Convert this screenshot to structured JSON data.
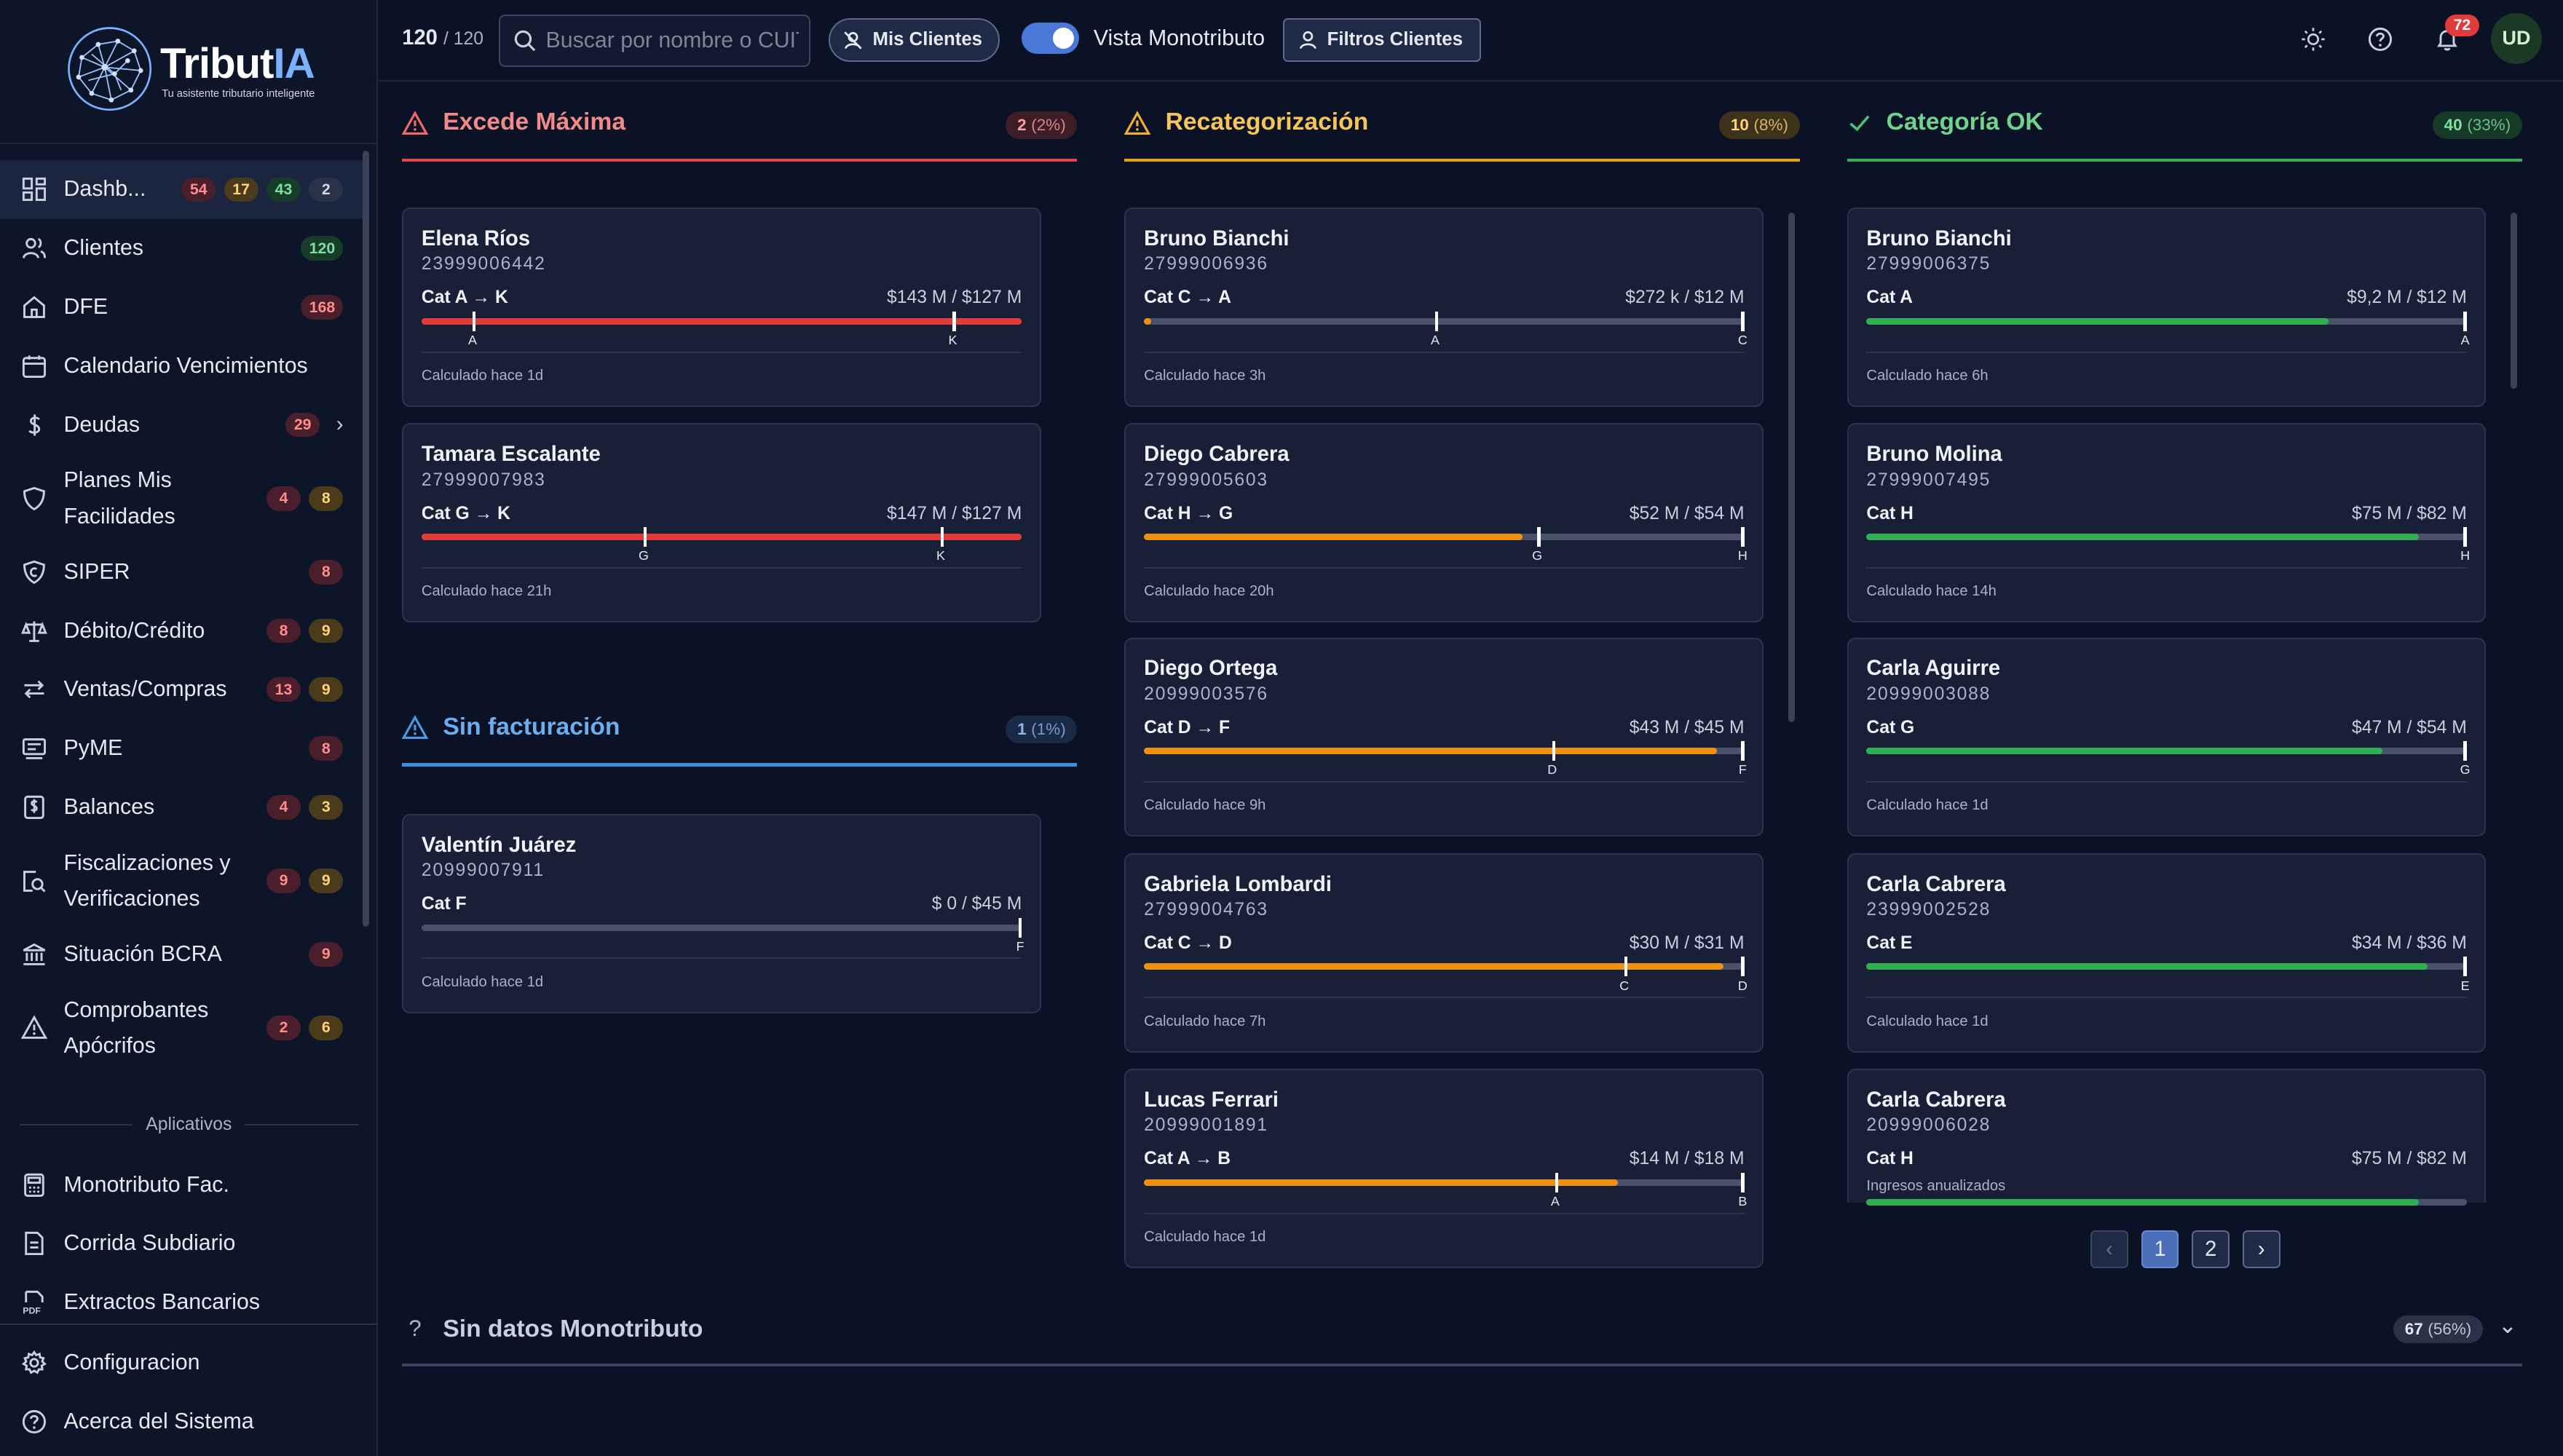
{
  "brand": {
    "name_a": "Tribut",
    "name_b": "IA",
    "tagline": "Tu asistente tributario inteligente"
  },
  "topbar": {
    "count": "120",
    "total": "/ 120",
    "search_placeholder": "Buscar por nombre o CUIT",
    "mis_clientes": "Mis Clientes",
    "vista_label": "Vista Monotributo",
    "filtros": "Filtros Clientes",
    "notifications": "72",
    "avatar": "UD"
  },
  "sidebar": {
    "items": [
      {
        "label": "Dashb...",
        "badges": [
          [
            "54",
            "red"
          ],
          [
            "17",
            "yel"
          ],
          [
            "43",
            "grn"
          ],
          [
            "2",
            "gry"
          ]
        ]
      },
      {
        "label": "Clientes",
        "badges": [
          [
            "120",
            "grn"
          ]
        ]
      },
      {
        "label": "DFE",
        "badges": [
          [
            "168",
            "red"
          ]
        ]
      },
      {
        "label": "Calendario Vencimientos",
        "badges": []
      },
      {
        "label": "Deudas",
        "badges": [
          [
            "29",
            "red"
          ]
        ]
      },
      {
        "label": "Planes Mis Facilidades",
        "badges": [
          [
            "4",
            "red"
          ],
          [
            "8",
            "yel"
          ]
        ]
      },
      {
        "label": "SIPER",
        "badges": [
          [
            "8",
            "red"
          ]
        ]
      },
      {
        "label": "Débito/Crédito",
        "badges": [
          [
            "8",
            "red"
          ],
          [
            "9",
            "yel"
          ]
        ]
      },
      {
        "label": "Ventas/Compras",
        "badges": [
          [
            "13",
            "red"
          ],
          [
            "9",
            "yel"
          ]
        ]
      },
      {
        "label": "PyME",
        "badges": [
          [
            "8",
            "red"
          ]
        ]
      },
      {
        "label": "Balances",
        "badges": [
          [
            "4",
            "red"
          ],
          [
            "3",
            "yel"
          ]
        ]
      },
      {
        "label": "Fiscalizaciones y Verificaciones",
        "badges": [
          [
            "9",
            "red"
          ],
          [
            "9",
            "yel"
          ]
        ]
      },
      {
        "label": "Situación BCRA",
        "badges": [
          [
            "9",
            "red"
          ]
        ]
      },
      {
        "label": "Comprobantes Apócrifos",
        "badges": [
          [
            "2",
            "red"
          ],
          [
            "6",
            "yel"
          ]
        ]
      }
    ],
    "section": "Aplicativos",
    "apps": [
      "Monotributo Fac.",
      "Corrida Subdiario",
      "Extractos Bancarios"
    ],
    "bottom": [
      "Configuracion",
      "Acerca del Sistema"
    ]
  },
  "columns": {
    "excede": {
      "title": "Excede Máxima",
      "count": "2",
      "pct": "(2%)",
      "color": "#e04848"
    },
    "recat": {
      "title": "Recategorización",
      "count": "10",
      "pct": "(8%)",
      "color": "#e8a01a"
    },
    "ok": {
      "title": "Categoría OK",
      "count": "40",
      "pct": "(33%)",
      "color": "#35b05a"
    },
    "sinfac": {
      "title": "Sin facturación",
      "count": "1",
      "pct": "(1%)",
      "color": "#3b8ee0"
    },
    "sindatos": {
      "title": "Sin datos Monotributo",
      "count": "67",
      "pct": "(56%)"
    }
  },
  "cards": {
    "excede": [
      {
        "name": "Elena Ríos",
        "cuit": "23999006442",
        "cat": "Cat A → K",
        "amt": "$143 M / $127 M",
        "fill": 1.0,
        "ticks": [
          [
            "A",
            0.085
          ],
          [
            "K",
            0.885
          ]
        ],
        "calc": "Calculado hace 1d"
      },
      {
        "name": "Tamara Escalante",
        "cuit": "27999007983",
        "cat": "Cat G → K",
        "amt": "$147 M / $127 M",
        "fill": 1.0,
        "ticks": [
          [
            "G",
            0.37
          ],
          [
            "K",
            0.865
          ]
        ],
        "calc": "Calculado hace 21h"
      }
    ],
    "sinfac": [
      {
        "name": "Valentín Juárez",
        "cuit": "20999007911",
        "cat": "Cat F",
        "amt": "$ 0 / $45 M",
        "fill": 0.0,
        "ticks": [
          [
            "F",
            1.0
          ]
        ],
        "calc": "Calculado hace 1d"
      }
    ],
    "recat": [
      {
        "name": "Bruno Bianchi",
        "cuit": "27999006936",
        "cat": "Cat C → A",
        "amt": "$272 k / $12 M",
        "fill": 0.012,
        "ticks": [
          [
            "A",
            0.485
          ],
          [
            "C",
            1.0
          ]
        ],
        "calc": "Calculado hace 3h"
      },
      {
        "name": "Diego Cabrera",
        "cuit": "27999005603",
        "cat": "Cat H → G",
        "amt": "$52 M / $54 M",
        "fill": 0.63,
        "ticks": [
          [
            "G",
            0.655
          ],
          [
            "H",
            1.0
          ]
        ],
        "calc": "Calculado hace 20h"
      },
      {
        "name": "Diego Ortega",
        "cuit": "20999003576",
        "cat": "Cat D → F",
        "amt": "$43 M / $45 M",
        "fill": 0.955,
        "ticks": [
          [
            "D",
            0.68
          ],
          [
            "F",
            1.0
          ]
        ],
        "calc": "Calculado hace 9h"
      },
      {
        "name": "Gabriela Lombardi",
        "cuit": "27999004763",
        "cat": "Cat C → D",
        "amt": "$30 M / $31 M",
        "fill": 0.965,
        "ticks": [
          [
            "C",
            0.8
          ],
          [
            "D",
            1.0
          ]
        ],
        "calc": "Calculado hace 7h"
      },
      {
        "name": "Lucas Ferrari",
        "cuit": "20999001891",
        "cat": "Cat A → B",
        "amt": "$14 M / $18 M",
        "fill": 0.79,
        "ticks": [
          [
            "A",
            0.685
          ],
          [
            "B",
            1.0
          ]
        ],
        "calc": "Calculado hace 1d"
      }
    ],
    "ok": [
      {
        "name": "Bruno Bianchi",
        "cuit": "27999006375",
        "cat": "Cat A",
        "amt": "$9,2 M / $12 M",
        "fill": 0.77,
        "ticks": [
          [
            "A",
            1.0
          ]
        ],
        "calc": "Calculado hace 6h"
      },
      {
        "name": "Bruno Molina",
        "cuit": "27999007495",
        "cat": "Cat H",
        "amt": "$75 M / $82 M",
        "fill": 0.92,
        "ticks": [
          [
            "H",
            1.0
          ]
        ],
        "calc": "Calculado hace 14h"
      },
      {
        "name": "Carla Aguirre",
        "cuit": "20999003088",
        "cat": "Cat G",
        "amt": "$47 M / $54 M",
        "fill": 0.86,
        "ticks": [
          [
            "G",
            1.0
          ]
        ],
        "calc": "Calculado hace 1d"
      },
      {
        "name": "Carla Cabrera",
        "cuit": "23999002528",
        "cat": "Cat E",
        "amt": "$34 M / $36 M",
        "fill": 0.935,
        "ticks": [
          [
            "E",
            1.0
          ]
        ],
        "calc": "Calculado hace 1d"
      },
      {
        "name": "Carla Cabrera",
        "cuit": "20999006028",
        "cat": "Cat H",
        "amt": "$75 M / $82 M",
        "fill": 0.92,
        "ticks": [],
        "calc": "",
        "note": "Ingresos anualizados"
      }
    ]
  },
  "pager": {
    "pages": [
      "1",
      "2"
    ],
    "prev": "‹",
    "next": "›"
  }
}
